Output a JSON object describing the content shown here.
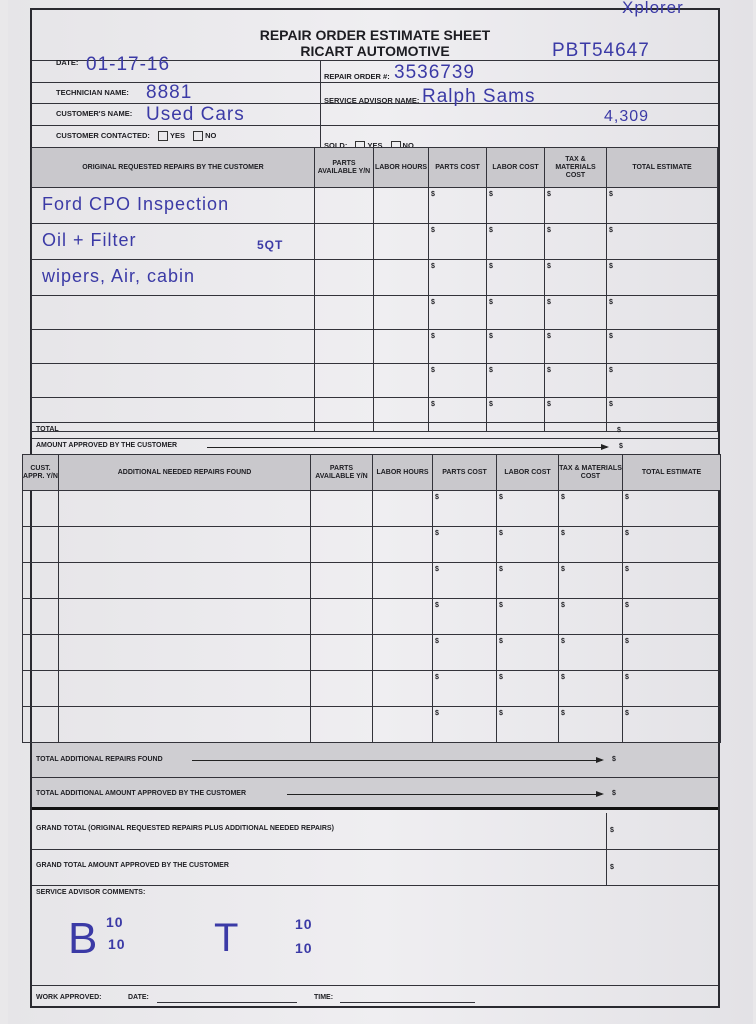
{
  "header": {
    "title": "REPAIR ORDER ESTIMATE SHEET",
    "company": "RICART AUTOMOTIVE"
  },
  "fields": {
    "date_label": "DATE:",
    "date_value": "01-17-16",
    "technician_label": "TECHNICIAN NAME:",
    "technician_value": "8881",
    "customer_label": "CUSTOMER'S NAME:",
    "customer_value": "Used Cars",
    "contacted_label": "CUSTOMER CONTACTED:",
    "yes_label": "YES",
    "no_label": "NO",
    "repair_order_label": "REPAIR ORDER #:",
    "repair_order_value": "3536739",
    "advisor_label": "SERVICE ADVISOR NAME:",
    "advisor_value": "Ralph Sams",
    "sold_label": "SOLD:",
    "note_model": "Xplorer",
    "note_stock": "PBT54647",
    "note_mileage": "4,309"
  },
  "table1": {
    "columns": [
      "ORIGINAL REQUESTED REPAIRS BY THE CUSTOMER",
      "PARTS AVAILABLE Y/N",
      "LABOR HOURS",
      "PARTS COST",
      "LABOR COST",
      "TAX & MATERIALS COST",
      "TOTAL ESTIMATE"
    ],
    "rows": [
      "Ford CPO Inspection",
      "Oil + Filter",
      "wipers, Air, cabin",
      "",
      "",
      "",
      ""
    ],
    "row2_note": "5QT",
    "currency": "$",
    "total_label": "TOTAL",
    "approved_label": "AMOUNT APPROVED BY THE CUSTOMER"
  },
  "table2": {
    "columns": [
      "CUST. APPR. Y/N",
      "ADDITIONAL NEEDED REPAIRS FOUND",
      "PARTS AVAILABLE Y/N",
      "LABOR HOURS",
      "PARTS COST",
      "LABOR COST",
      "TAX & MATERIALS COST",
      "TOTAL ESTIMATE"
    ],
    "row_count": 7,
    "currency": "$"
  },
  "totals": {
    "additional_found": "TOTAL ADDITIONAL REPAIRS FOUND",
    "additional_approved": "TOTAL ADDITIONAL AMOUNT APPROVED BY THE CUSTOMER",
    "grand_total": "GRAND TOTAL (Original requested repairs plus additional needed repairs)",
    "grand_approved": "GRAND TOTAL AMOUNT APPROVED BY THE CUSTOMER",
    "currency": "$"
  },
  "comments": {
    "label": "SERVICE ADVISOR COMMENTS:",
    "b_letter": "B",
    "b_top": "10",
    "b_bottom": "10",
    "t_letter": "T",
    "t_top": "10",
    "t_bottom": "10"
  },
  "footer": {
    "work_approved": "WORK APPROVED:",
    "date": "DATE:",
    "time": "TIME:"
  }
}
